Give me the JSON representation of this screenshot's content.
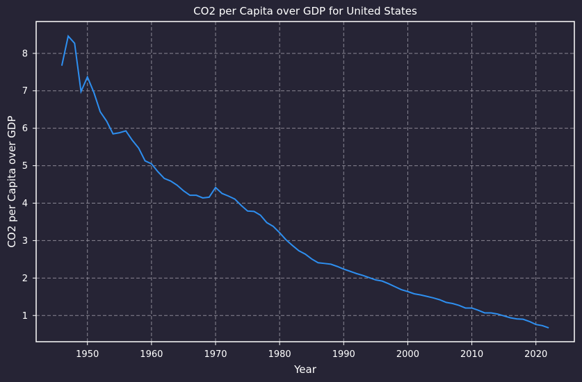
{
  "chart_data": {
    "type": "line",
    "title": "CO2 per Capita over GDP for United States",
    "xlabel": "Year",
    "ylabel": "CO2 per Capita over GDP",
    "xlim": [
      1942,
      2026
    ],
    "ylim": [
      0.3,
      8.85
    ],
    "x_ticks": [
      1950,
      1960,
      1970,
      1980,
      1990,
      2000,
      2010,
      2020
    ],
    "y_ticks": [
      1,
      2,
      3,
      4,
      5,
      6,
      7,
      8
    ],
    "grid": true,
    "colors": {
      "background": "#262435",
      "line": "#2e8ff0",
      "grid": "#8a8794",
      "axes": "#ffffff",
      "text": "#ffffff"
    },
    "series": [
      {
        "x": [
          1946,
          1947,
          1948,
          1949,
          1950,
          1951,
          1952,
          1953,
          1954,
          1955,
          1956,
          1957,
          1958,
          1959,
          1960,
          1961,
          1962,
          1963,
          1964,
          1965,
          1966,
          1967,
          1968,
          1969,
          1970,
          1971,
          1972,
          1973,
          1974,
          1975,
          1976,
          1977,
          1978,
          1979,
          1980,
          1981,
          1982,
          1983,
          1984,
          1985,
          1986,
          1987,
          1988,
          1989,
          1990,
          1991,
          1992,
          1993,
          1994,
          1995,
          1996,
          1997,
          1998,
          1999,
          2000,
          2001,
          2002,
          2003,
          2004,
          2005,
          2006,
          2007,
          2008,
          2009,
          2010,
          2011,
          2012,
          2013,
          2014,
          2015,
          2016,
          2017,
          2018,
          2019,
          2020,
          2021,
          2022
        ],
        "values": [
          7.67,
          8.46,
          8.27,
          6.98,
          7.37,
          6.96,
          6.44,
          6.19,
          5.85,
          5.88,
          5.93,
          5.68,
          5.47,
          5.13,
          5.05,
          4.84,
          4.66,
          4.59,
          4.48,
          4.33,
          4.21,
          4.21,
          4.14,
          4.16,
          4.42,
          4.26,
          4.19,
          4.11,
          3.94,
          3.79,
          3.78,
          3.68,
          3.48,
          3.38,
          3.21,
          3.02,
          2.87,
          2.73,
          2.64,
          2.51,
          2.41,
          2.39,
          2.37,
          2.31,
          2.24,
          2.18,
          2.12,
          2.07,
          2.01,
          1.95,
          1.92,
          1.85,
          1.77,
          1.69,
          1.64,
          1.58,
          1.55,
          1.51,
          1.47,
          1.42,
          1.35,
          1.32,
          1.27,
          1.2,
          1.2,
          1.14,
          1.07,
          1.07,
          1.04,
          0.99,
          0.94,
          0.91,
          0.9,
          0.84,
          0.76,
          0.73,
          0.67
        ]
      }
    ]
  }
}
